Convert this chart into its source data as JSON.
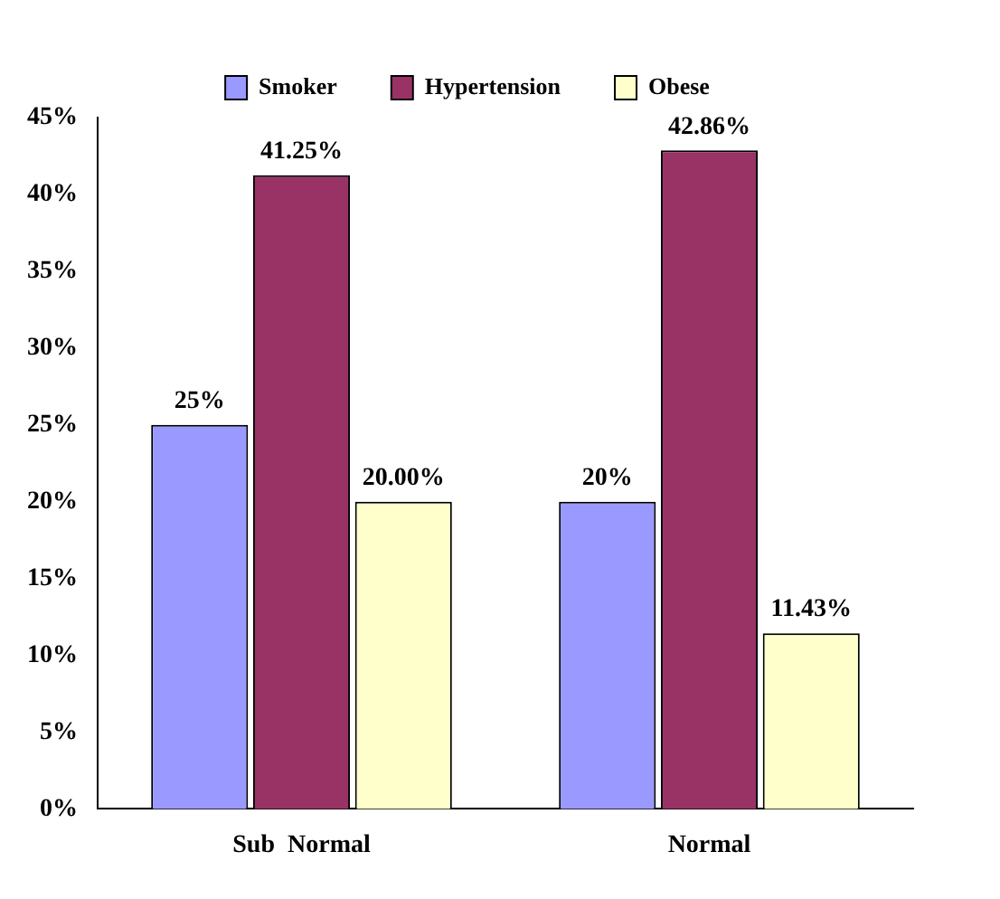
{
  "chart_data": {
    "type": "bar",
    "categories": [
      "Sub  Normal",
      "Normal"
    ],
    "series": [
      {
        "name": "Smoker",
        "color": "#9999ff",
        "values": [
          25,
          20
        ],
        "value_labels": [
          "25%",
          "20%"
        ]
      },
      {
        "name": "Hypertension",
        "color": "#993366",
        "values": [
          41.25,
          42.86
        ],
        "value_labels": [
          "41.25%",
          "42.86%"
        ]
      },
      {
        "name": "Obese",
        "color": "#ffffcc",
        "values": [
          20,
          11.43
        ],
        "value_labels": [
          "20.00%",
          "11.43%"
        ]
      }
    ],
    "ylim": [
      0,
      45
    ],
    "yticks": [
      {
        "value": 0,
        "label": "0%"
      },
      {
        "value": 5,
        "label": "5%"
      },
      {
        "value": 10,
        "label": "10%"
      },
      {
        "value": 15,
        "label": "15%"
      },
      {
        "value": 20,
        "label": "20%"
      },
      {
        "value": 25,
        "label": "25%"
      },
      {
        "value": 30,
        "label": "30%"
      },
      {
        "value": 35,
        "label": "35%"
      },
      {
        "value": 40,
        "label": "40%"
      },
      {
        "value": 45,
        "label": "45%"
      }
    ],
    "grid": false,
    "legend": "top"
  }
}
